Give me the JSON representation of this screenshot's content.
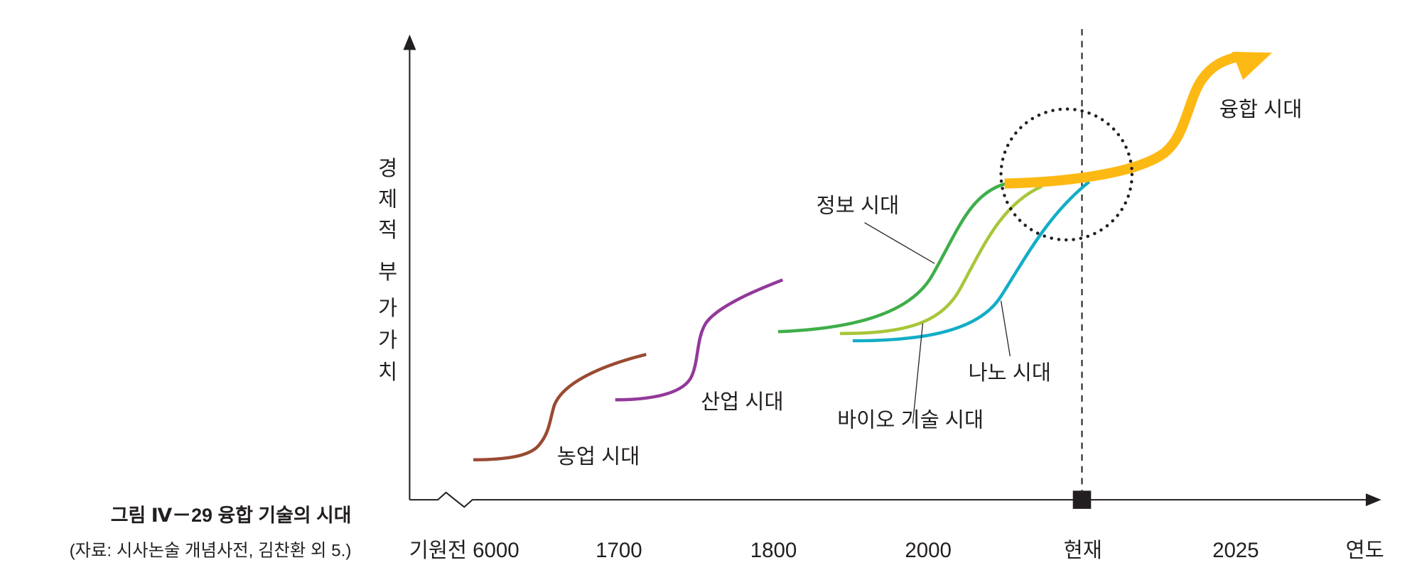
{
  "caption": {
    "title": "그림   Ⅳ－29  융합 기술의 시대",
    "source": "(자료: 시사논술 개념사전, 김찬환 외 5.)"
  },
  "y_axis": {
    "chars": [
      "경",
      "제",
      "적",
      "부",
      "가",
      "가",
      "치"
    ],
    "label": "경제적 부가가치"
  },
  "x_axis": {
    "ticks": [
      "기원전 6000",
      "1700",
      "1800",
      "2000",
      "현재",
      "2025"
    ],
    "label": "연도"
  },
  "eras": [
    {
      "label": "농업 시대",
      "color": "#9a4a32"
    },
    {
      "label": "산업 시대",
      "color": "#93399a"
    },
    {
      "label": "정보 시대",
      "color": "#3fae49"
    },
    {
      "label": "바이오 기술 시대",
      "color": "#a8c63a"
    },
    {
      "label": "나노 시대",
      "color": "#13adc6"
    },
    {
      "label": "융합 시대",
      "color": "#fdb913"
    }
  ]
}
